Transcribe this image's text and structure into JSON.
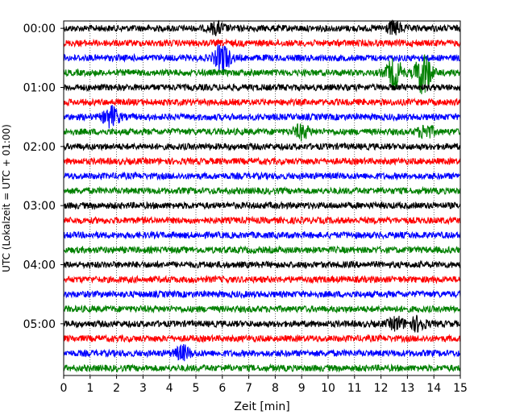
{
  "chart_data": {
    "type": "line",
    "subtype": "helicorder",
    "xlabel": "Zeit  [min]",
    "ylabel": "UTC (Lokalzeit = UTC + 01:00)",
    "xlim": [
      0,
      15
    ],
    "x_ticks": [
      "0",
      "1",
      "2",
      "3",
      "4",
      "5",
      "6",
      "7",
      "8",
      "9",
      "10",
      "11",
      "12",
      "13",
      "14",
      "15"
    ],
    "y_tick_labels": [
      "00:00",
      "01:00",
      "02:00",
      "03:00",
      "04:00",
      "05:00"
    ],
    "grid": "vertical dotted at each minute",
    "line_colors": [
      "#000000",
      "#ff0000",
      "#0000ff",
      "#008000"
    ],
    "traces": [
      {
        "start": "00:00",
        "color": "#000000",
        "events": [
          {
            "x": 5.8,
            "amp": 0.7
          },
          {
            "x": 12.5,
            "amp": 0.8
          }
        ]
      },
      {
        "start": "00:15",
        "color": "#ff0000",
        "events": []
      },
      {
        "start": "00:30",
        "color": "#0000ff",
        "events": [
          {
            "x": 6.0,
            "amp": 1.9
          }
        ]
      },
      {
        "start": "00:45",
        "color": "#008000",
        "events": [
          {
            "x": 12.5,
            "amp": 2.0
          },
          {
            "x": 13.6,
            "amp": 3.0
          }
        ]
      },
      {
        "start": "01:00",
        "color": "#000000",
        "events": []
      },
      {
        "start": "01:15",
        "color": "#ff0000",
        "events": []
      },
      {
        "start": "01:30",
        "color": "#0000ff",
        "events": [
          {
            "x": 1.8,
            "amp": 1.4
          }
        ]
      },
      {
        "start": "01:45",
        "color": "#008000",
        "events": [
          {
            "x": 9.0,
            "amp": 0.9
          },
          {
            "x": 13.7,
            "amp": 0.9
          }
        ]
      },
      {
        "start": "02:00",
        "color": "#000000",
        "events": []
      },
      {
        "start": "02:15",
        "color": "#ff0000",
        "events": []
      },
      {
        "start": "02:30",
        "color": "#0000ff",
        "events": []
      },
      {
        "start": "02:45",
        "color": "#008000",
        "events": []
      },
      {
        "start": "03:00",
        "color": "#000000",
        "events": []
      },
      {
        "start": "03:15",
        "color": "#ff0000",
        "events": []
      },
      {
        "start": "03:30",
        "color": "#0000ff",
        "events": []
      },
      {
        "start": "03:45",
        "color": "#008000",
        "events": []
      },
      {
        "start": "04:00",
        "color": "#000000",
        "events": []
      },
      {
        "start": "04:15",
        "color": "#ff0000",
        "events": []
      },
      {
        "start": "04:30",
        "color": "#0000ff",
        "events": []
      },
      {
        "start": "04:45",
        "color": "#008000",
        "events": []
      },
      {
        "start": "05:00",
        "color": "#000000",
        "events": [
          {
            "x": 12.6,
            "amp": 0.8
          },
          {
            "x": 13.4,
            "amp": 0.9
          }
        ]
      },
      {
        "start": "05:15",
        "color": "#ff0000",
        "events": []
      },
      {
        "start": "05:30",
        "color": "#0000ff",
        "events": [
          {
            "x": 4.5,
            "amp": 0.9
          }
        ]
      },
      {
        "start": "05:45",
        "color": "#008000",
        "events": []
      }
    ]
  }
}
